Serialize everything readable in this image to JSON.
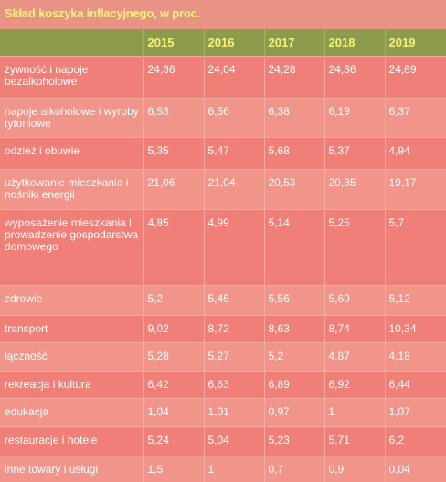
{
  "title": "Skład koszyka inflacyjnego, w proc.",
  "header": {
    "corner": "",
    "years": [
      "2015",
      "2016",
      "2017",
      "2018",
      "2019"
    ]
  },
  "rows": [
    {
      "label": "żywność i napoje bezalkoholowe",
      "values": [
        "24,36",
        "24,04",
        "24,28",
        "24,36",
        "24,89"
      ]
    },
    {
      "label": "napoje alkoholowe i wyroby tytoniowe",
      "values": [
        "6,53",
        "6,56",
        "6,38",
        "6,19",
        "6,37"
      ]
    },
    {
      "label": "odzież i obuwie",
      "values": [
        "5,35",
        "5,47",
        "5,68",
        "5,37",
        "4,94"
      ]
    },
    {
      "label": "użytkowanie mieszkania i nośniki energii",
      "values": [
        "21,06",
        "21,04",
        "20,53",
        "20,35",
        "19,17"
      ]
    },
    {
      "label": "wyposażenie mieszkania i prowadzenie gospodarstwa domowego",
      "values": [
        "4,85",
        "4,99",
        "5,14",
        "5,25",
        "5,7"
      ]
    },
    {
      "label": "zdrowie",
      "values": [
        "5,2",
        "5,45",
        "5,56",
        "5,69",
        "5,12"
      ]
    },
    {
      "label": "transport",
      "values": [
        "9,02",
        "8,72",
        "8,63",
        "8,74",
        "10,34"
      ]
    },
    {
      "label": "łączność",
      "values": [
        "5,28",
        "5,27",
        "5,2",
        "4,87",
        "4,18"
      ]
    },
    {
      "label": "rekreacja i kultura",
      "values": [
        "6,42",
        "6,63",
        "6,89",
        "6,92",
        "6,44"
      ]
    },
    {
      "label": "edukacja",
      "values": [
        "1,04",
        "1,01",
        "0,97",
        "1",
        "1,07"
      ]
    },
    {
      "label": "restauracje i hotele",
      "values": [
        "5,24",
        "5,04",
        "5,23",
        "5,71",
        "6,2"
      ]
    },
    {
      "label": "inne towary i usługi",
      "values": [
        "1,5",
        "1",
        "0,7",
        "0,9",
        "0,04"
      ]
    }
  ]
}
